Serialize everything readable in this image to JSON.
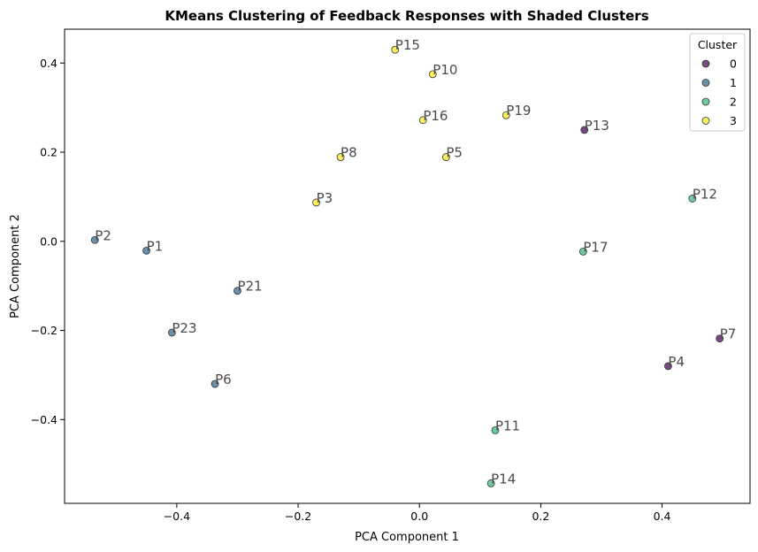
{
  "chart_data": {
    "type": "scatter",
    "title": "KMeans Clustering of Feedback Responses with Shaded Clusters",
    "xlabel": "PCA Component 1",
    "ylabel": "PCA Component 2",
    "xlim": [
      -0.585,
      0.545
    ],
    "ylim": [
      -0.588,
      0.476
    ],
    "xticks": [
      -0.4,
      -0.2,
      0.0,
      0.2,
      0.4
    ],
    "xtick_labels": [
      "−0.4",
      "−0.2",
      "0.0",
      "0.2",
      "0.4"
    ],
    "yticks": [
      -0.4,
      -0.2,
      0.0,
      0.2,
      0.4
    ],
    "ytick_labels": [
      "−0.4",
      "−0.2",
      "0.0",
      "0.2",
      "0.4"
    ],
    "grid": false,
    "legend": {
      "title": "Cluster",
      "placement": "top-right",
      "entries": [
        {
          "label": "0",
          "color": "#440154"
        },
        {
          "label": "1",
          "color": "#31688e"
        },
        {
          "label": "2",
          "color": "#35b779"
        },
        {
          "label": "3",
          "color": "#fde725"
        }
      ]
    },
    "points": [
      {
        "label": "P15",
        "x": -0.04,
        "y": 0.43,
        "cluster": 3
      },
      {
        "label": "P10",
        "x": 0.022,
        "y": 0.375,
        "cluster": 3
      },
      {
        "label": "P19",
        "x": 0.143,
        "y": 0.283,
        "cluster": 3
      },
      {
        "label": "P16",
        "x": 0.006,
        "y": 0.272,
        "cluster": 3
      },
      {
        "label": "P13",
        "x": 0.272,
        "y": 0.25,
        "cluster": 0
      },
      {
        "label": "P8",
        "x": -0.13,
        "y": 0.189,
        "cluster": 3
      },
      {
        "label": "P5",
        "x": 0.044,
        "y": 0.189,
        "cluster": 3
      },
      {
        "label": "P12",
        "x": 0.45,
        "y": 0.096,
        "cluster": 2
      },
      {
        "label": "P3",
        "x": -0.17,
        "y": 0.087,
        "cluster": 3
      },
      {
        "label": "P2",
        "x": -0.535,
        "y": 0.003,
        "cluster": 1
      },
      {
        "label": "P1",
        "x": -0.45,
        "y": -0.021,
        "cluster": 1
      },
      {
        "label": "P17",
        "x": 0.27,
        "y": -0.023,
        "cluster": 2
      },
      {
        "label": "P21",
        "x": -0.3,
        "y": -0.111,
        "cluster": 1
      },
      {
        "label": "P23",
        "x": -0.408,
        "y": -0.205,
        "cluster": 1
      },
      {
        "label": "P7",
        "x": 0.495,
        "y": -0.218,
        "cluster": 0
      },
      {
        "label": "P4",
        "x": 0.41,
        "y": -0.28,
        "cluster": 0
      },
      {
        "label": "P6",
        "x": -0.337,
        "y": -0.32,
        "cluster": 1
      },
      {
        "label": "P11",
        "x": 0.125,
        "y": -0.424,
        "cluster": 2
      },
      {
        "label": "P14",
        "x": 0.118,
        "y": -0.543,
        "cluster": 2
      }
    ]
  }
}
